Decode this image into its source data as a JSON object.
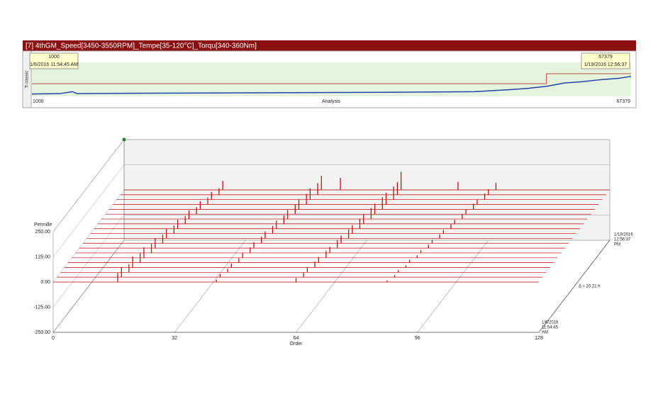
{
  "header": {
    "title": "[7] 4thGM_Speed[3450-3550RPM]_Tempe[35-120°C]_Torqu[340-360Nm]"
  },
  "overview": {
    "side_label": "Ti classic",
    "start_box": {
      "index": "1000",
      "time": "1/6/2016 11:54:45 AM"
    },
    "end_box": {
      "index": "67379",
      "time": "1/19/2016 12:56:37"
    },
    "axis": {
      "left": "1000",
      "center": "Analysis",
      "right": "67379"
    },
    "xlim": [
      1000,
      67379
    ],
    "ylim": [
      0,
      100
    ],
    "trend": {
      "color": "#2244aa",
      "x": [
        1000,
        4000,
        5500,
        6000,
        10000,
        20000,
        30000,
        40000,
        50000,
        54000,
        56000,
        58000,
        60000,
        62000,
        64000,
        66000,
        67379
      ],
      "values": [
        5,
        6,
        12,
        6,
        7,
        8,
        9,
        10,
        12,
        18,
        22,
        28,
        38,
        42,
        48,
        52,
        58
      ]
    },
    "limit": {
      "color": "#c0504d",
      "x": [
        1000,
        58000,
        58000,
        67379
      ],
      "values": [
        36,
        36,
        66,
        66
      ]
    }
  },
  "waterfall": {
    "y_label": "Permille",
    "x_label": "Order",
    "color": "#c00000",
    "ylim": [
      -250,
      250
    ],
    "yticks": [
      {
        "value": 250,
        "label": "250.00"
      },
      {
        "value": 125,
        "label": "125.00"
      },
      {
        "value": 0,
        "label": "0.00"
      },
      {
        "value": -125,
        "label": "-125.00"
      },
      {
        "value": -250,
        "label": "-250.00"
      }
    ],
    "xlim": [
      0,
      128
    ],
    "xticks": [
      0,
      32,
      64,
      96,
      128
    ],
    "depth_start": [
      "1/6/2016",
      "11:54:45",
      "AM"
    ],
    "depth_end": [
      "1/19/2016",
      "12:56:37",
      "PM"
    ],
    "depth_span": "Δ = 20.21 h",
    "traces": [
      {
        "spikes": [
          [
            17,
            45
          ],
          [
            43,
            12
          ],
          [
            64,
            20
          ],
          [
            88,
            8
          ]
        ]
      },
      {
        "spikes": [
          [
            17,
            50
          ],
          [
            43,
            15
          ],
          [
            65,
            22
          ],
          [
            89,
            10
          ]
        ]
      },
      {
        "spikes": [
          [
            18,
            40
          ],
          [
            44,
            18
          ],
          [
            65,
            25
          ],
          [
            89,
            12
          ]
        ]
      },
      {
        "spikes": [
          [
            18,
            55
          ],
          [
            44,
            20
          ],
          [
            66,
            30
          ],
          [
            90,
            10
          ]
        ]
      },
      {
        "spikes": [
          [
            19,
            48
          ],
          [
            45,
            22
          ],
          [
            66,
            28
          ],
          [
            90,
            14
          ]
        ]
      },
      {
        "spikes": [
          [
            19,
            52
          ],
          [
            45,
            25
          ],
          [
            67,
            35
          ],
          [
            91,
            12
          ]
        ]
      },
      {
        "spikes": [
          [
            20,
            45
          ],
          [
            46,
            28
          ],
          [
            67,
            30
          ],
          [
            91,
            15
          ]
        ]
      },
      {
        "spikes": [
          [
            20,
            50
          ],
          [
            46,
            30
          ],
          [
            68,
            40
          ],
          [
            92,
            18
          ]
        ]
      },
      {
        "spikes": [
          [
            21,
            42
          ],
          [
            47,
            32
          ],
          [
            68,
            38
          ],
          [
            92,
            16
          ]
        ]
      },
      {
        "spikes": [
          [
            21,
            48
          ],
          [
            47,
            35
          ],
          [
            69,
            45
          ],
          [
            93,
            20
          ]
        ]
      },
      {
        "spikes": [
          [
            22,
            40
          ],
          [
            48,
            38
          ],
          [
            69,
            42
          ],
          [
            93,
            18
          ]
        ]
      },
      {
        "spikes": [
          [
            22,
            45
          ],
          [
            48,
            40
          ],
          [
            70,
            50
          ],
          [
            94,
            22
          ]
        ]
      },
      {
        "spikes": [
          [
            23,
            38
          ],
          [
            49,
            42
          ],
          [
            70,
            48
          ],
          [
            94,
            20
          ]
        ]
      },
      {
        "spikes": [
          [
            23,
            42
          ],
          [
            49,
            45
          ],
          [
            71,
            55
          ],
          [
            95,
            25
          ]
        ]
      },
      {
        "spikes": [
          [
            24,
            35
          ],
          [
            50,
            48
          ],
          [
            71,
            52
          ],
          [
            95,
            22
          ]
        ]
      },
      {
        "spikes": [
          [
            24,
            40
          ],
          [
            50,
            50
          ],
          [
            72,
            60
          ],
          [
            96,
            28
          ]
        ]
      },
      {
        "spikes": [
          [
            25,
            35
          ],
          [
            51,
            52
          ],
          [
            72,
            58
          ],
          [
            96,
            25
          ]
        ]
      },
      {
        "spikes": [
          [
            25,
            38
          ],
          [
            51,
            55
          ],
          [
            73,
            65
          ],
          [
            97,
            30
          ]
        ]
      },
      {
        "spikes": [
          [
            26,
            32
          ],
          [
            52,
            58
          ],
          [
            73,
            62
          ],
          [
            97,
            28
          ]
        ]
      },
      {
        "spikes": [
          [
            26,
            45
          ],
          [
            52,
            70
          ],
          [
            57,
            60
          ],
          [
            73,
            90
          ],
          [
            88,
            40
          ],
          [
            98,
            35
          ]
        ]
      }
    ]
  }
}
